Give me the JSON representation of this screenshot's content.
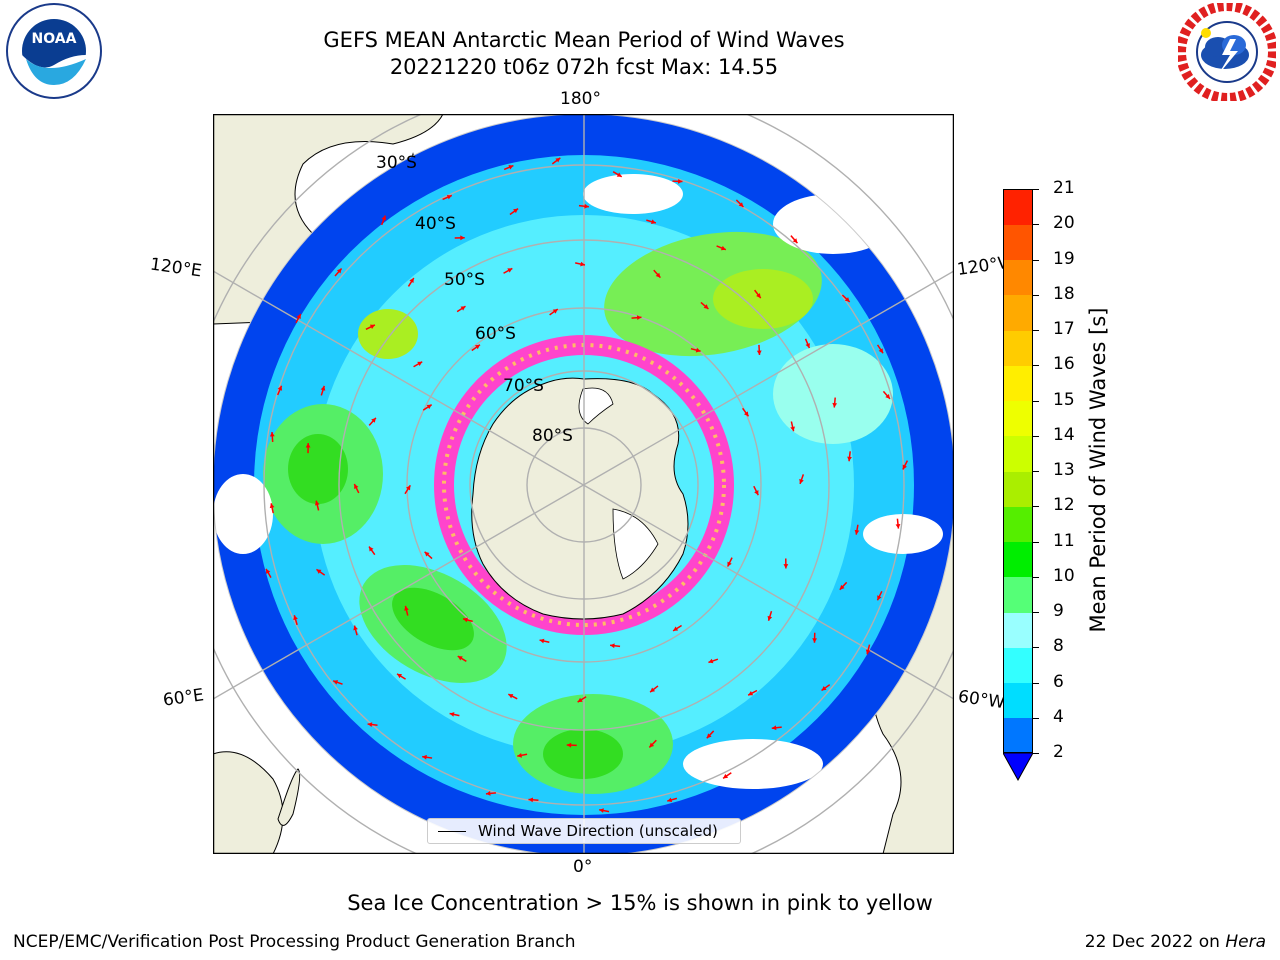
{
  "header": {
    "title_line1": "GEFS MEAN Antarctic Mean Period of Wind Waves",
    "title_line2": "20221220 t06z 072h fcst   Max: 14.55"
  },
  "logos": {
    "left": {
      "name": "NOAA",
      "ring_text": "NATIONAL OCEANIC AND ATMOSPHERIC ADMINISTRATION · U.S. DEPARTMENT OF COMMERCE"
    },
    "right": {
      "name": "National Weather Service",
      "ring_text": "NATIONAL WEATHER SERVICE"
    }
  },
  "map": {
    "projection": "south-polar-stereographic",
    "longitude_labels": {
      "top": "180°",
      "bottom": "0°",
      "left_upper": "120°E",
      "left_lower": "60°E",
      "right_upper": "120°W",
      "right_lower": "60°W"
    },
    "latitude_labels": [
      "30°S",
      "40°S",
      "50°S",
      "60°S",
      "70°S",
      "80°S"
    ],
    "colors": {
      "land": "#eeeedc",
      "ocean_no_data": "#ffffff",
      "grid": "#b0b0b0",
      "arrow": "#ff0000",
      "ice": "#ff44cc"
    },
    "legend_label": "Wind Wave Direction (unscaled)"
  },
  "colorbar": {
    "title": "Mean Period of Wind Waves [s]",
    "ticks": [
      "2",
      "4",
      "6",
      "8",
      "9",
      "10",
      "11",
      "12",
      "13",
      "14",
      "15",
      "16",
      "17",
      "18",
      "19",
      "20",
      "21"
    ],
    "colors": [
      "#0077ff",
      "#00ddff",
      "#33ffff",
      "#99ffff",
      "#55ff77",
      "#00ee00",
      "#55ee00",
      "#aaee00",
      "#ccff00",
      "#eeff00",
      "#ffee00",
      "#ffcc00",
      "#ffaa00",
      "#ff8800",
      "#ff5500",
      "#ff2200"
    ],
    "extend_color": "#0000ff"
  },
  "caption": "Sea Ice Concentration > 15% is shown in pink to yellow",
  "footer": {
    "left": "NCEP/EMC/Verification Post Processing Product Generation Branch",
    "right_prefix": "22 Dec 2022 on ",
    "right_host": "Hera"
  }
}
